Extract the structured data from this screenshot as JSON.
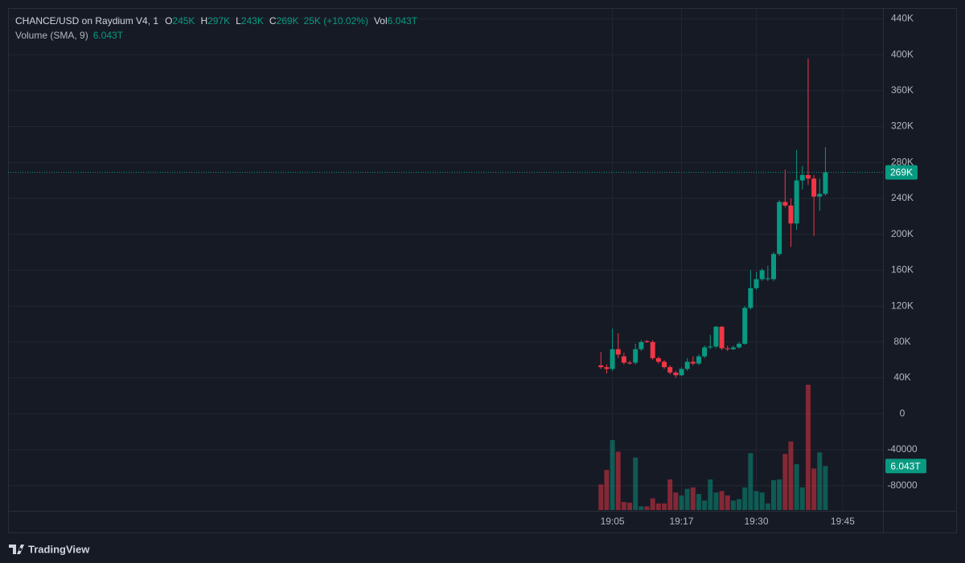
{
  "chart_data": {
    "type": "candlestick",
    "header": {
      "title": "CHANCE/USD on Raydium V4, 1",
      "fields": [
        {
          "label": "O",
          "text": "245K"
        },
        {
          "label": "H",
          "text": "297K"
        },
        {
          "label": "L",
          "text": "243K"
        },
        {
          "label": "C",
          "text": "269K"
        }
      ],
      "change": "25K (+10.02%)",
      "volume_label": "Vol",
      "volume_text": "6.043T"
    },
    "volume_study": {
      "title": "Volume (SMA, 9)",
      "text": "6.043T"
    },
    "brand": "TradingView",
    "up_color": "#089981",
    "down_color": "#f23645",
    "x": [
      "19:03",
      "19:04",
      "19:05",
      "19:06",
      "19:07",
      "19:08",
      "19:09",
      "19:10",
      "19:11",
      "19:12",
      "19:13",
      "19:14",
      "19:15",
      "19:16",
      "19:17",
      "19:18",
      "19:19",
      "19:20",
      "19:21",
      "19:22",
      "19:23",
      "19:24",
      "19:25",
      "19:26",
      "19:27",
      "19:28",
      "19:29",
      "19:30",
      "19:31",
      "19:32",
      "19:33",
      "19:34",
      "19:35",
      "19:36",
      "19:37",
      "19:38",
      "19:39",
      "19:40",
      "19:41",
      "19:42"
    ],
    "open": [
      54000,
      52000,
      50000,
      72000,
      64000,
      57000,
      57000,
      72000,
      81000,
      80000,
      62000,
      58000,
      52000,
      46000,
      43000,
      50000,
      58000,
      56000,
      64000,
      74000,
      75000,
      97000,
      73000,
      72000,
      74000,
      78000,
      118000,
      140000,
      150000,
      150000,
      150000,
      178000,
      236000,
      232000,
      212000,
      260000,
      266000,
      262000,
      242000,
      245000
    ],
    "high": [
      69000,
      55000,
      95000,
      90000,
      68000,
      59000,
      78000,
      82000,
      82000,
      82000,
      64000,
      60000,
      54000,
      48000,
      52000,
      62000,
      64000,
      66000,
      76000,
      88000,
      98000,
      98000,
      76000,
      76000,
      80000,
      120000,
      160000,
      158000,
      162000,
      165000,
      180000,
      238000,
      272000,
      240000,
      294000,
      276000,
      396000,
      266000,
      262000,
      297000
    ],
    "low": [
      50000,
      45000,
      48000,
      62000,
      55000,
      55000,
      55000,
      70000,
      79000,
      60000,
      56000,
      50000,
      44000,
      40000,
      42000,
      48000,
      54000,
      54000,
      62000,
      72000,
      73000,
      71000,
      70000,
      71000,
      73000,
      77000,
      116000,
      138000,
      148000,
      148000,
      148000,
      176000,
      230000,
      186000,
      205000,
      250000,
      255000,
      198000,
      226000,
      243000
    ],
    "close": [
      52000,
      50000,
      72000,
      66000,
      57000,
      56000,
      72000,
      80000,
      80000,
      62000,
      58000,
      52000,
      46000,
      43000,
      50000,
      58000,
      56000,
      64000,
      74000,
      75000,
      97000,
      73000,
      72000,
      74000,
      78000,
      118000,
      140000,
      150000,
      160000,
      151000,
      178000,
      236000,
      232000,
      212000,
      260000,
      266000,
      262000,
      242000,
      245000,
      269000
    ],
    "volume": [
      3.5,
      5.5,
      9.6,
      8.0,
      1.1,
      1.0,
      7.2,
      0.5,
      0.5,
      1.6,
      0.9,
      0.9,
      4.2,
      2.4,
      2.0,
      2.9,
      3.1,
      2.2,
      1.3,
      4.2,
      2.4,
      2.6,
      2.0,
      1.3,
      1.5,
      3.1,
      7.8,
      2.6,
      2.4,
      0.9,
      4.1,
      4.2,
      7.7,
      9.4,
      6.3,
      3.1,
      17.2,
      5.7,
      7.9,
      6.043
    ],
    "xlim": [
      "17:20",
      "19:52"
    ],
    "xticks": [
      "19:05",
      "19:17",
      "19:30",
      "19:45"
    ],
    "ylim": [
      -108000,
      452000
    ],
    "yticks": [
      {
        "value": 440000,
        "label": "440K"
      },
      {
        "value": 400000,
        "label": "400K"
      },
      {
        "value": 360000,
        "label": "360K"
      },
      {
        "value": 320000,
        "label": "320K"
      },
      {
        "value": 280000,
        "label": "280K"
      },
      {
        "value": 240000,
        "label": "240K"
      },
      {
        "value": 200000,
        "label": "200K"
      },
      {
        "value": 160000,
        "label": "160K"
      },
      {
        "value": 120000,
        "label": "120K"
      },
      {
        "value": 80000,
        "label": "80K"
      },
      {
        "value": 40000,
        "label": "40K"
      },
      0,
      -40000,
      -80000
    ],
    "grid": true
  }
}
